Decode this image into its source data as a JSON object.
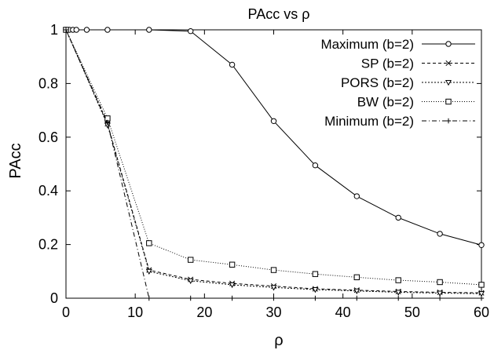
{
  "chart_data": {
    "type": "line",
    "title": "PAcc vs ρ",
    "xlabel": "ρ",
    "ylabel": "PAcc",
    "xlim": [
      0,
      60
    ],
    "ylim": [
      0,
      1
    ],
    "xticks": [
      0,
      10,
      20,
      30,
      40,
      50,
      60
    ],
    "yticks": [
      0,
      0.2,
      0.4,
      0.6,
      0.8,
      1
    ],
    "ytick_labels": [
      "0",
      "0.2",
      "0.4",
      "0.6",
      "0.8",
      "1"
    ],
    "grid": false,
    "legend_position": "top-right",
    "series": [
      {
        "name": "Maximum (b=2)",
        "marker": "circle",
        "dash": "solid",
        "points": [
          [
            0,
            1
          ],
          [
            0.5,
            1
          ],
          [
            1,
            1
          ],
          [
            1.5,
            1
          ],
          [
            3,
            1
          ],
          [
            6,
            1
          ],
          [
            12,
            1
          ],
          [
            18,
            0.995
          ],
          [
            24,
            0.87
          ],
          [
            30,
            0.66
          ],
          [
            36,
            0.495
          ],
          [
            42,
            0.38
          ],
          [
            48,
            0.3
          ],
          [
            54,
            0.24
          ],
          [
            60,
            0.198
          ]
        ]
      },
      {
        "name": "SP (b=2)",
        "marker": "x",
        "dash": "dashed",
        "points": [
          [
            0,
            1
          ],
          [
            6,
            0.65
          ],
          [
            12,
            0.105
          ],
          [
            18,
            0.07
          ],
          [
            24,
            0.055
          ],
          [
            30,
            0.045
          ],
          [
            36,
            0.035
          ],
          [
            42,
            0.03
          ],
          [
            48,
            0.025
          ],
          [
            54,
            0.022
          ],
          [
            60,
            0.02
          ]
        ]
      },
      {
        "name": "PORS (b=2)",
        "marker": "triangle-down",
        "dash": "dotted",
        "points": [
          [
            0,
            1
          ],
          [
            6,
            0.645
          ],
          [
            12,
            0.1
          ],
          [
            18,
            0.065
          ],
          [
            24,
            0.05
          ],
          [
            30,
            0.04
          ],
          [
            36,
            0.032
          ],
          [
            42,
            0.027
          ],
          [
            48,
            0.022
          ],
          [
            54,
            0.019
          ],
          [
            60,
            0.017
          ]
        ]
      },
      {
        "name": "BW (b=2)",
        "marker": "square",
        "dash": "fine-dotted",
        "points": [
          [
            0,
            1
          ],
          [
            6,
            0.67
          ],
          [
            12,
            0.205
          ],
          [
            18,
            0.143
          ],
          [
            24,
            0.125
          ],
          [
            30,
            0.105
          ],
          [
            36,
            0.09
          ],
          [
            42,
            0.078
          ],
          [
            48,
            0.067
          ],
          [
            54,
            0.06
          ],
          [
            60,
            0.05
          ]
        ]
      },
      {
        "name": "Minimum (b=2)",
        "marker": "plus",
        "dash": "dash-dot",
        "points": [
          [
            0,
            1
          ],
          [
            6,
            0.655
          ],
          [
            12,
            0
          ],
          [
            18,
            0
          ],
          [
            24,
            0
          ],
          [
            30,
            0
          ],
          [
            36,
            0
          ],
          [
            42,
            0
          ],
          [
            48,
            0
          ],
          [
            54,
            0
          ],
          [
            60,
            0
          ]
        ]
      }
    ]
  }
}
